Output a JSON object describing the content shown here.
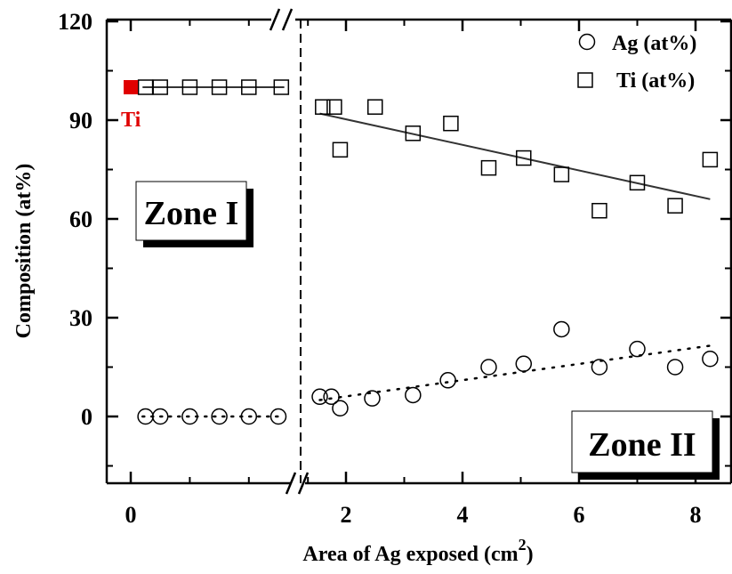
{
  "chart_data": {
    "type": "scatter",
    "xlabel_main": "Area of Ag exposed (cm",
    "xlabel_sup": "2",
    "xlabel_end": ")",
    "ylabel": "Composition (at%)",
    "ylim": [
      -20,
      120
    ],
    "y_ticks": [
      "0",
      "30",
      "60",
      "90",
      "120"
    ],
    "x_ticks": [
      "0",
      "2",
      "4",
      "6",
      "8"
    ],
    "axis_break": "//",
    "zones": {
      "zone1": "Zone I",
      "zone2": "Zone II"
    },
    "ti_marker_label": "Ti",
    "ti_marker_color": "#e00000",
    "legend": [
      "Ag (at%)",
      "Ti (at%)"
    ],
    "series": [
      {
        "name": "Ag (at%)",
        "marker": "circle",
        "zone1_x": [
          0.25,
          0.5,
          1.0,
          1.5,
          2.0,
          2.5
        ],
        "zone1_y": [
          0,
          0,
          0,
          0,
          0,
          0
        ],
        "zone2_x": [
          1.55,
          1.75,
          1.9,
          2.45,
          3.15,
          3.75,
          4.45,
          5.05,
          5.7,
          6.35,
          7.0,
          7.65,
          8.25
        ],
        "zone2_y": [
          6,
          6,
          2.5,
          5.5,
          6.5,
          11,
          15,
          16,
          26.5,
          15,
          20.5,
          15,
          17.5
        ]
      },
      {
        "name": "Ti (at%)",
        "marker": "square",
        "zone1_x": [
          0.25,
          0.5,
          1.0,
          1.5,
          2.0,
          2.55
        ],
        "zone1_y": [
          100,
          100,
          100,
          100,
          100,
          100
        ],
        "zone2_x": [
          1.6,
          1.8,
          1.9,
          2.5,
          3.15,
          3.8,
          4.45,
          5.05,
          5.7,
          6.35,
          7.0,
          7.65,
          8.25
        ],
        "zone2_y": [
          94,
          94,
          81,
          94,
          86,
          89,
          75.5,
          78.5,
          73.5,
          62.5,
          71,
          64,
          78
        ]
      }
    ],
    "fits": {
      "ag_zone1": {
        "y": 0,
        "style": "dotted"
      },
      "ti_zone1": {
        "y": 100,
        "style": "solid"
      },
      "ag_zone2": {
        "x": [
          1.55,
          8.25
        ],
        "y": [
          5,
          21.5
        ],
        "style": "dotted"
      },
      "ti_zone2": {
        "x": [
          1.55,
          8.25
        ],
        "y": [
          92,
          66
        ],
        "style": "solid"
      }
    },
    "ti_marker": {
      "x": 0,
      "y": 100
    }
  }
}
